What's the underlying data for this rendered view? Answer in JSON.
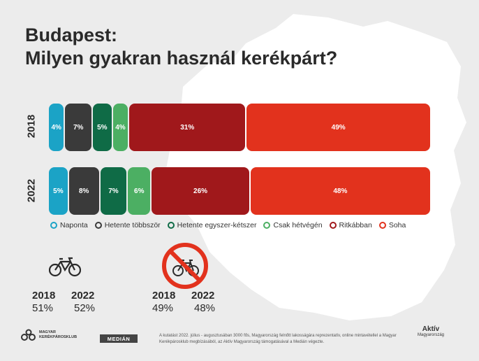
{
  "header": {
    "title_line1": "Budapest:",
    "title_line2": "Milyen gyakran használ kerékpárt?"
  },
  "chart_data": {
    "type": "bar",
    "stacked": true,
    "orientation": "horizontal",
    "categories": [
      "2018",
      "2022"
    ],
    "series": [
      {
        "name": "Naponta",
        "color": "#1ba3c6",
        "values": [
          4,
          5
        ],
        "labels": [
          "4%",
          "5%"
        ]
      },
      {
        "name": "Hetente többször",
        "color": "#3a3a3a",
        "values": [
          7,
          8
        ],
        "labels": [
          "7%",
          "8%"
        ]
      },
      {
        "name": "Hetente egyszer-kétszer",
        "color": "#0f6b46",
        "values": [
          5,
          7
        ],
        "labels": [
          "5%",
          "7%"
        ]
      },
      {
        "name": "Csak hétvégén",
        "color": "#4caf63",
        "values": [
          4,
          6
        ],
        "labels": [
          "4%",
          "6%"
        ]
      },
      {
        "name": "Ritkábban",
        "color": "#a0181b",
        "values": [
          31,
          26
        ],
        "labels": [
          "31%",
          "26%"
        ]
      },
      {
        "name": "Soha",
        "color": "#e2321d",
        "values": [
          49,
          48
        ],
        "labels": [
          "49%",
          "48%"
        ]
      }
    ],
    "legend_position": "bottom",
    "grid": false
  },
  "stats": {
    "cyclists": {
      "icon": "bicycle-icon",
      "year1": "2018",
      "year2": "2022",
      "val1": "51%",
      "val2": "52%"
    },
    "non_cyclists": {
      "icon": "no-bicycle-icon",
      "year1": "2018",
      "year2": "2022",
      "val1": "49%",
      "val2": "48%"
    }
  },
  "footer": {
    "note": "A kutatást 2022. július - augusztusában 3000 fős, Magyarország felnőtt lakosságára reprezentatív, online mintavétellel a Magyar Kerékpárosklub megbízásából, az Aktív Magyarország támogatásával a Medián végezte.",
    "logo_mk_line1": "MAGYAR",
    "logo_mk_line2": "KERÉKPÁROSKLUB",
    "logo_median": "MEDIÁN",
    "logo_aktiv_name": "Aktív",
    "logo_aktiv_sub": "Magyarország"
  }
}
